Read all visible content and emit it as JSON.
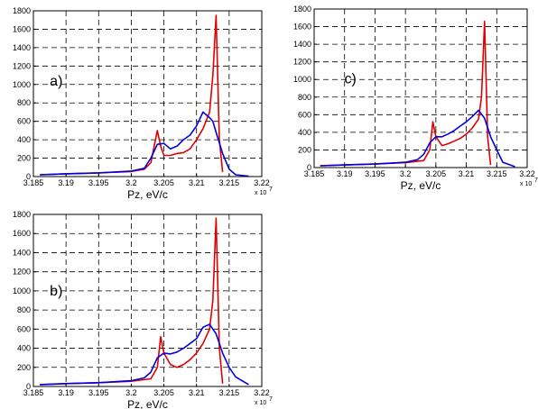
{
  "chart_data": [
    {
      "type": "line",
      "panel_label": "a)",
      "xlabel": "Pz, eV/c",
      "x_multiplier": "x 10",
      "x_multiplier_exp": "7",
      "xlim": [
        3.185,
        3.22
      ],
      "ylim": [
        0,
        1800
      ],
      "x_ticks": [
        "3.185",
        "3.19",
        "3.195",
        "3.2",
        "3.205",
        "3.21",
        "3.215",
        "3.22"
      ],
      "y_ticks": [
        "0",
        "200",
        "400",
        "600",
        "800",
        "1000",
        "1200",
        "1400",
        "1600",
        "1800"
      ],
      "grid": true,
      "series": [
        {
          "color": "#e00000",
          "x": [
            3.186,
            3.19,
            3.195,
            3.2,
            3.202,
            3.203,
            3.204,
            3.2045,
            3.205,
            3.206,
            3.207,
            3.208,
            3.209,
            3.21,
            3.211,
            3.212,
            3.2125,
            3.213,
            3.2135,
            3.214
          ],
          "y": [
            20,
            30,
            40,
            55,
            80,
            150,
            500,
            330,
            230,
            230,
            250,
            260,
            300,
            400,
            520,
            700,
            1100,
            1750,
            400,
            50
          ]
        },
        {
          "color": "#0000e0",
          "x": [
            3.186,
            3.19,
            3.195,
            3.2,
            3.202,
            3.203,
            3.204,
            3.205,
            3.206,
            3.207,
            3.208,
            3.209,
            3.21,
            3.211,
            3.212,
            3.2125,
            3.213,
            3.214,
            3.215,
            3.216,
            3.218
          ],
          "y": [
            20,
            30,
            40,
            60,
            90,
            200,
            350,
            360,
            300,
            330,
            400,
            450,
            550,
            700,
            640,
            600,
            480,
            250,
            80,
            20,
            5
          ]
        }
      ]
    },
    {
      "type": "line",
      "panel_label": "b)",
      "xlabel": "Pz, eV/c",
      "x_multiplier": "x 10",
      "x_multiplier_exp": "7",
      "xlim": [
        3.185,
        3.22
      ],
      "ylim": [
        0,
        1800
      ],
      "x_ticks": [
        "3.185",
        "3.19",
        "3.195",
        "3.2",
        "3.205",
        "3.21",
        "3.215",
        "3.22"
      ],
      "y_ticks": [
        "0",
        "200",
        "400",
        "600",
        "800",
        "1000",
        "1200",
        "1400",
        "1600",
        "1800"
      ],
      "grid": true,
      "series": [
        {
          "color": "#e00000",
          "x": [
            3.186,
            3.19,
            3.195,
            3.2,
            3.203,
            3.204,
            3.2045,
            3.205,
            3.206,
            3.207,
            3.208,
            3.209,
            3.21,
            3.211,
            3.212,
            3.2125,
            3.213,
            3.2135,
            3.214
          ],
          "y": [
            20,
            30,
            40,
            55,
            80,
            200,
            520,
            350,
            230,
            200,
            230,
            280,
            350,
            450,
            600,
            900,
            1760,
            400,
            30
          ]
        },
        {
          "color": "#0000e0",
          "x": [
            3.186,
            3.19,
            3.195,
            3.2,
            3.202,
            3.203,
            3.204,
            3.205,
            3.206,
            3.207,
            3.208,
            3.209,
            3.21,
            3.211,
            3.212,
            3.213,
            3.214,
            3.215,
            3.216,
            3.218
          ],
          "y": [
            20,
            30,
            40,
            60,
            90,
            150,
            300,
            350,
            340,
            360,
            400,
            450,
            500,
            620,
            650,
            550,
            350,
            200,
            100,
            20
          ]
        }
      ]
    },
    {
      "type": "line",
      "panel_label": "c)",
      "xlabel": "Pz, eV/c",
      "x_multiplier": "x 10",
      "x_multiplier_exp": "7",
      "xlim": [
        3.185,
        3.22
      ],
      "ylim": [
        0,
        1800
      ],
      "x_ticks": [
        "3.185",
        "3.19",
        "3.195",
        "3.2",
        "3.205",
        "3.21",
        "3.215",
        "3.22"
      ],
      "y_ticks": [
        "0",
        "200",
        "400",
        "600",
        "800",
        "1000",
        "1200",
        "1400",
        "1600",
        "1800"
      ],
      "grid": true,
      "series": [
        {
          "color": "#e00000",
          "x": [
            3.186,
            3.19,
            3.195,
            3.2,
            3.203,
            3.204,
            3.2045,
            3.205,
            3.206,
            3.207,
            3.208,
            3.209,
            3.21,
            3.211,
            3.212,
            3.2125,
            3.213,
            3.2135,
            3.214
          ],
          "y": [
            20,
            30,
            40,
            55,
            80,
            200,
            520,
            350,
            250,
            270,
            300,
            330,
            380,
            450,
            550,
            800,
            1660,
            350,
            30
          ]
        },
        {
          "color": "#0000e0",
          "x": [
            3.186,
            3.19,
            3.195,
            3.2,
            3.202,
            3.203,
            3.204,
            3.205,
            3.206,
            3.207,
            3.208,
            3.209,
            3.21,
            3.211,
            3.212,
            3.213,
            3.214,
            3.215,
            3.216,
            3.218
          ],
          "y": [
            20,
            30,
            40,
            60,
            90,
            150,
            280,
            350,
            350,
            380,
            420,
            470,
            520,
            580,
            650,
            560,
            350,
            200,
            60,
            10
          ]
        }
      ]
    }
  ]
}
